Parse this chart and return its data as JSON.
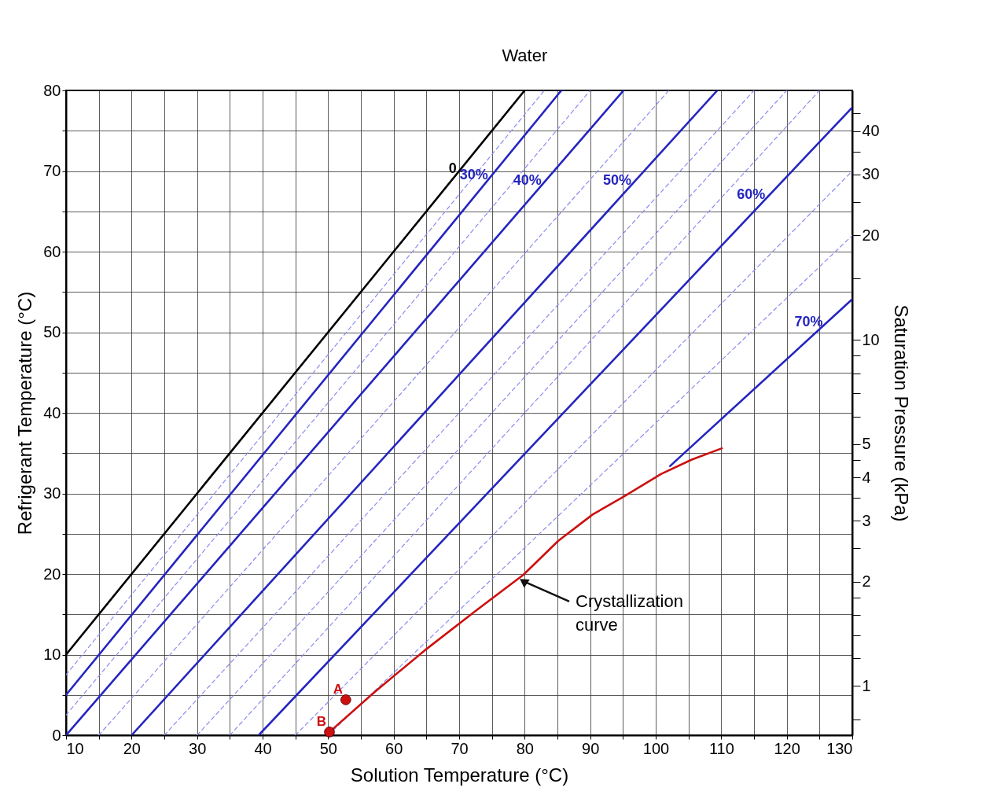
{
  "chart_data": {
    "type": "line",
    "xlabel": "Solution Temperature (°C)",
    "ylabel": "Refrigerant Temperature (°C)",
    "y2label": "Saturation Pressure (kPa)",
    "xlim": [
      10,
      130
    ],
    "xticks": [
      10,
      {
        "value": 15,
        "label": null
      },
      20,
      {
        "value": 25,
        "label": null
      },
      30,
      {
        "value": 35,
        "label": null
      },
      40,
      {
        "value": 45,
        "label": null
      },
      50,
      {
        "value": 55,
        "label": null
      },
      60,
      {
        "value": 65,
        "label": null
      },
      70,
      {
        "value": 75,
        "label": null
      },
      80,
      {
        "value": 85,
        "label": null
      },
      90,
      {
        "value": 95,
        "label": null
      },
      100,
      {
        "value": 105,
        "label": null
      },
      110,
      {
        "value": 115,
        "label": null
      },
      120,
      {
        "value": 125,
        "label": null
      },
      130
    ],
    "ylim": [
      0,
      80
    ],
    "yticks": [
      0,
      {
        "value": 5,
        "label": null
      },
      10,
      {
        "value": 15,
        "label": null
      },
      20,
      {
        "value": 25,
        "label": null
      },
      30,
      {
        "value": 35,
        "label": null
      },
      40,
      {
        "value": 45,
        "label": null
      },
      50,
      {
        "value": 55,
        "label": null
      },
      60,
      {
        "value": 65,
        "label": null
      },
      70,
      {
        "value": 75,
        "label": null
      },
      80
    ],
    "log": "y2",
    "y2lim": [
      0.72,
      52.5
    ],
    "y2ticks": [
      {
        "value": 0.8,
        "label": null
      },
      1,
      {
        "value": 1.2,
        "label": null
      },
      {
        "value": 1.4,
        "label": null
      },
      {
        "value": 1.6,
        "label": null
      },
      {
        "value": 1.8,
        "label": null
      },
      2,
      {
        "value": 2.5,
        "label": null
      },
      3,
      {
        "value": 3.5,
        "label": null
      },
      4,
      {
        "value": 4.5,
        "label": null
      },
      5,
      {
        "value": 6,
        "label": null
      },
      {
        "value": 7,
        "label": null
      },
      {
        "value": 8,
        "label": null
      },
      {
        "value": 9,
        "label": null
      },
      10,
      {
        "value": 15,
        "label": null
      },
      20,
      {
        "value": 25,
        "label": null
      },
      30,
      {
        "value": 35,
        "label": null
      },
      40,
      {
        "value": 45,
        "label": null
      }
    ],
    "grid": true,
    "series": [
      {
        "name": "0",
        "color": "#000000",
        "x": [
          10,
          80
        ],
        "values": [
          10,
          80
        ]
      },
      {
        "color": "#8c8cf0",
        "line_style": "dashed",
        "x": [
          10,
          83
        ],
        "values": [
          7.5,
          80
        ]
      },
      {
        "name": "30%",
        "color": "#2525c0",
        "x": [
          10,
          85.6
        ],
        "values": [
          5,
          80
        ]
      },
      {
        "color": "#8c8cf0",
        "line_style": "dashed",
        "x": [
          10,
          90
        ],
        "values": [
          2.5,
          80
        ]
      },
      {
        "name": "40%",
        "color": "#2525c0",
        "x": [
          10,
          95.1
        ],
        "values": [
          0,
          80
        ]
      },
      {
        "color": "#8c8cf0",
        "line_style": "dashed",
        "x": [
          15,
          102
        ],
        "values": [
          0,
          80
        ]
      },
      {
        "name": "50%",
        "color": "#2525c0",
        "x": [
          20,
          109.4
        ],
        "values": [
          0,
          80
        ]
      },
      {
        "color": "#8c8cf0",
        "line_style": "dashed",
        "x": [
          25,
          115
        ],
        "values": [
          0,
          80
        ]
      },
      {
        "color": "#8c8cf0",
        "line_style": "dashed",
        "x": [
          30,
          120
        ],
        "values": [
          0,
          80
        ]
      },
      {
        "color": "#8c8cf0",
        "line_style": "dashed",
        "x": [
          35,
          125
        ],
        "values": [
          0,
          80
        ]
      },
      {
        "name": "60%",
        "color": "#2525c0",
        "x": [
          39.4,
          130
        ],
        "values": [
          0,
          77.9
        ]
      },
      {
        "color": "#8c8cf0",
        "line_style": "dashed",
        "x": [
          45,
          130
        ],
        "values": [
          0,
          70
        ]
      },
      {
        "color": "#8c8cf0",
        "line_style": "dashed",
        "x": [
          50,
          130
        ],
        "values": [
          0,
          62
        ]
      },
      {
        "name": "70%",
        "color": "#2525c0",
        "x": [
          102.2,
          130
        ],
        "values": [
          33.4,
          54.1
        ]
      },
      {
        "color": "#cc1010",
        "x": [
          50.2,
          57,
          64.7,
          72.3,
          79.8,
          85.1,
          90.4,
          95.1,
          100.8,
          105.5,
          110.1
        ],
        "values": [
          0.4,
          5.3,
          10.5,
          15.3,
          19.9,
          24.1,
          27.4,
          29.6,
          32.4,
          34.2,
          35.6
        ]
      },
      {
        "name": "A",
        "type": "scatter",
        "marker": "circle",
        "color": "#cc1010",
        "x": [
          52.7
        ],
        "values": [
          4.4
        ]
      },
      {
        "name": "B",
        "type": "scatter",
        "marker": "circle",
        "color": "#cc1010",
        "x": [
          50.2
        ],
        "values": [
          0.4
        ]
      }
    ],
    "annotations": [
      {
        "text": "Water",
        "x": 80,
        "y": 80
      },
      {
        "text": "Crystallization curve",
        "x": 79.8,
        "y": 19.1
      }
    ]
  }
}
